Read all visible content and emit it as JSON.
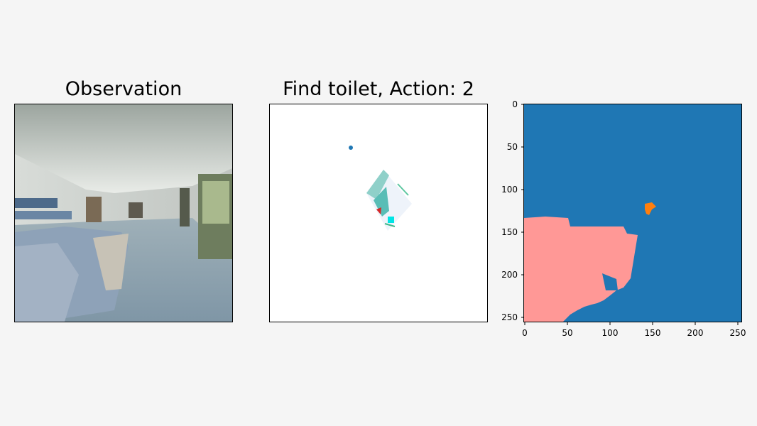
{
  "panels": {
    "observation": {
      "title": "Observation"
    },
    "map": {
      "title": "Find toilet, Action: 2"
    },
    "segmentation": {
      "y_ticks": [
        "0",
        "50",
        "100",
        "150",
        "200",
        "250"
      ],
      "x_ticks": [
        "0",
        "50",
        "100",
        "150",
        "200",
        "250"
      ]
    }
  },
  "colors": {
    "background": "#f5f5f5",
    "seg_background": "#1f77b4",
    "seg_region_a": "#ff9896",
    "seg_region_b": "#ff7f0e",
    "agent_marker": "#d62728",
    "goal_marker": "#1f77b4"
  }
}
